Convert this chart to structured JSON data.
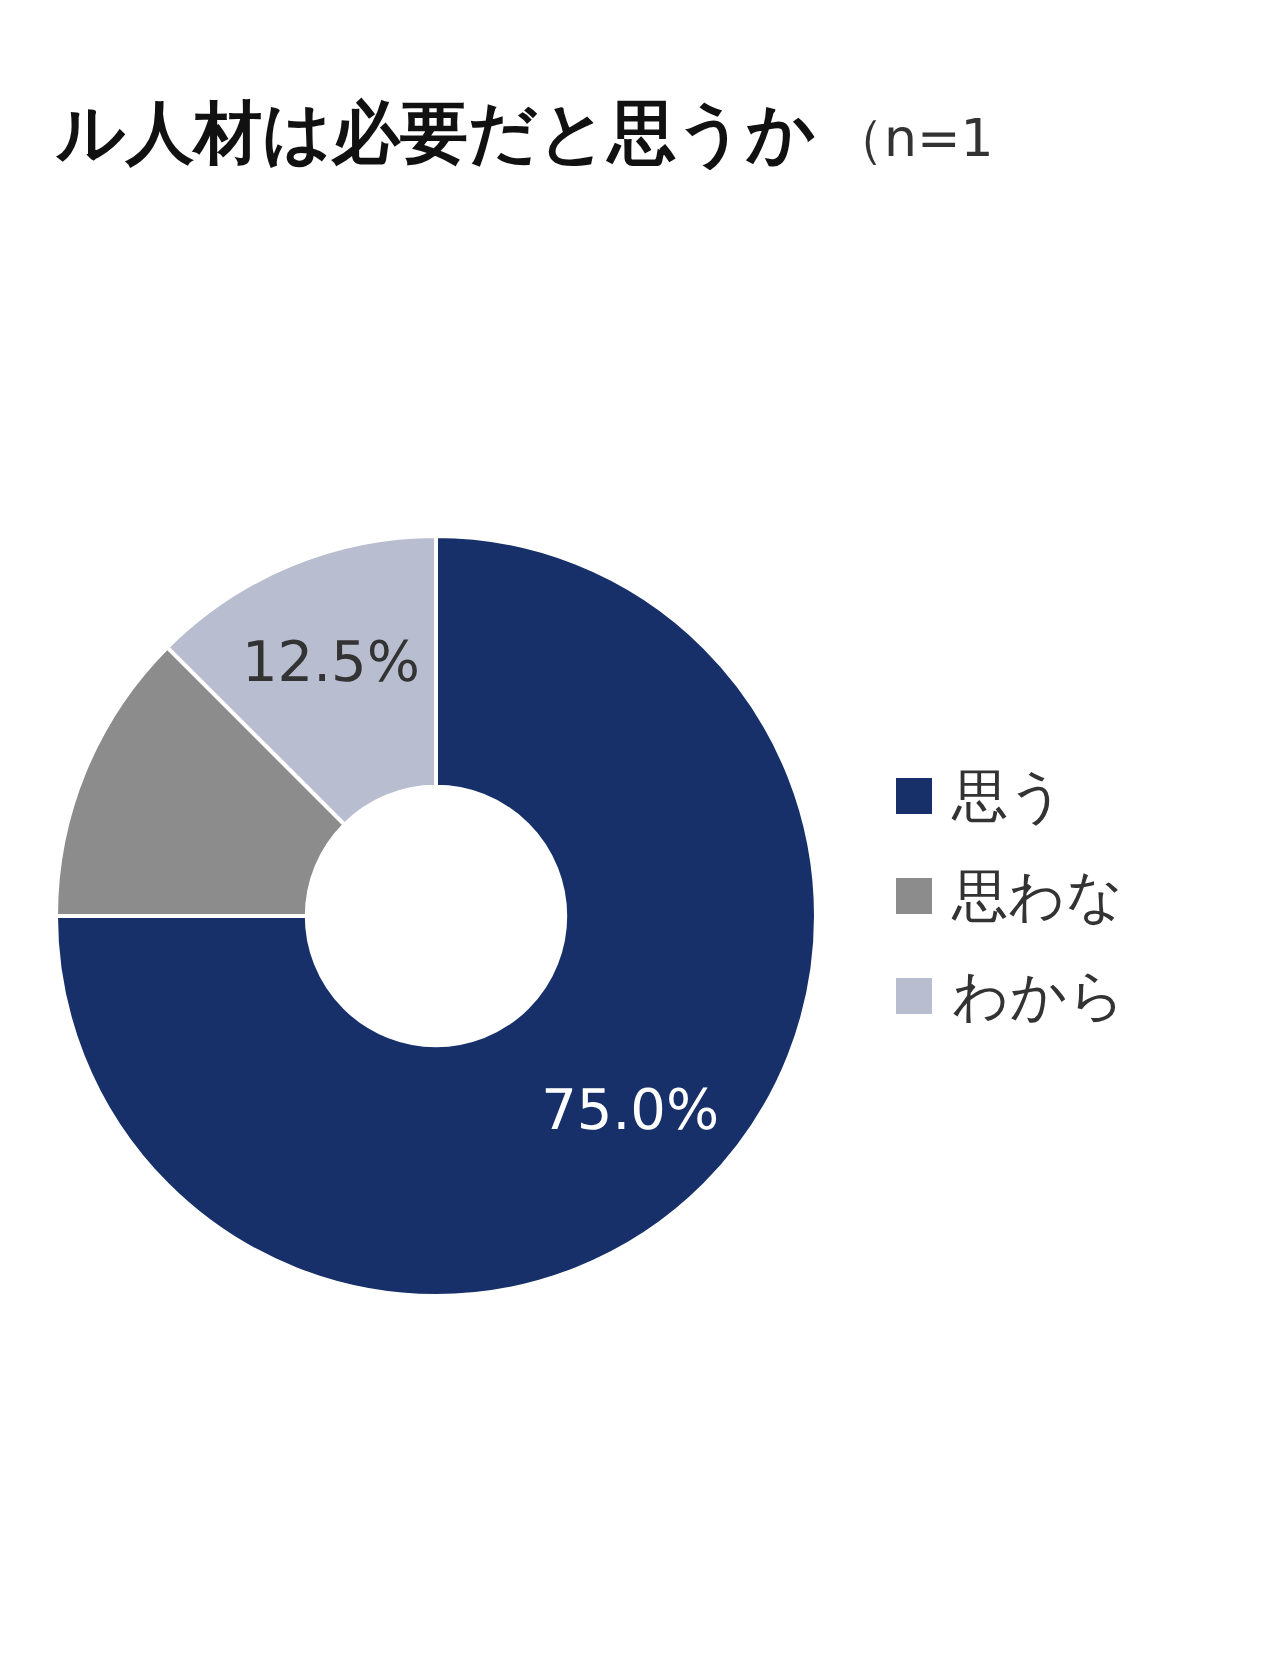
{
  "chart_data": {
    "type": "donut",
    "title": "ル人材は必要だと思うか",
    "subtitle": "（n=1",
    "categories": [
      "思う",
      "思わな",
      "わから"
    ],
    "values": [
      75,
      12.5,
      12.5
    ],
    "colors": [
      "#17306a",
      "#8c8c8c",
      "#b8bdd0"
    ],
    "value_labels": [
      "75.0%",
      null,
      "12.5%"
    ],
    "legend": "right"
  }
}
